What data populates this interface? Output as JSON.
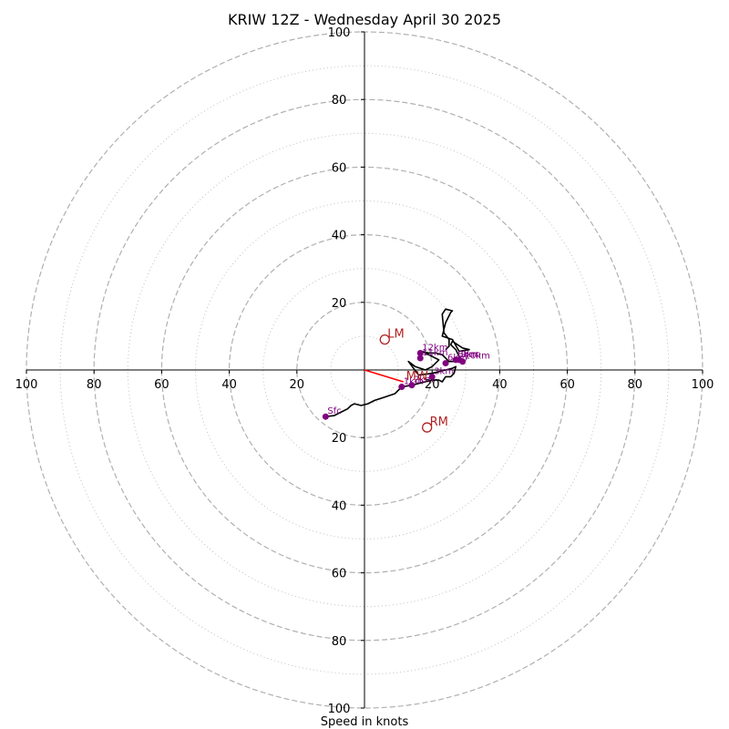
{
  "chart_data": {
    "type": "scatter",
    "subtype": "hodograph",
    "title": "KRIW 12Z - Wednesday April 30 2025",
    "xlabel": "Speed in knots",
    "units": "knots",
    "range": [
      -100,
      100
    ],
    "rings_dashed": [
      20,
      40,
      60,
      80,
      100
    ],
    "rings_dotted": [
      10,
      30,
      50,
      70,
      90
    ],
    "tick_labels": [
      "20",
      "40",
      "60",
      "80",
      "100"
    ],
    "grid": true,
    "colors": {
      "trace": "#000000",
      "height_points": "#800080",
      "storm_motion": "#b22222",
      "mean_wind_vector": "#ff0000",
      "rings": "#b0b0b0"
    },
    "hodograph_trace": {
      "u": [
        -11.5,
        -9,
        -7,
        -5,
        -4,
        -3,
        -1,
        1,
        3,
        6,
        9,
        11,
        14,
        16,
        18,
        20,
        22,
        23,
        24,
        25.5,
        26.5,
        27,
        26,
        24,
        20,
        16,
        13,
        15,
        18,
        20,
        22,
        20,
        17,
        19,
        21,
        23,
        25,
        27,
        28,
        27,
        25.5,
        26,
        29,
        31,
        28,
        26,
        23,
        24,
        25.5,
        26,
        24,
        23,
        23.5,
        25,
        25,
        24
      ],
      "v": [
        -13.8,
        -13.5,
        -12.5,
        -11.5,
        -10.5,
        -10,
        -10.5,
        -10,
        -9,
        -8,
        -7,
        -5,
        -4.5,
        -4,
        -3.5,
        -3,
        -3,
        -3.5,
        -2,
        -2,
        -1,
        1,
        0.5,
        0,
        -1,
        -1.5,
        2.5,
        1,
        0,
        1,
        3,
        4,
        5.5,
        5,
        5,
        4.5,
        2.5,
        2.5,
        4,
        6,
        7.5,
        8.5,
        6.5,
        6,
        5.5,
        9,
        10,
        14,
        17,
        17.5,
        18,
        16.5,
        11,
        9,
        7,
        6
      ]
    },
    "height_points": [
      {
        "label": "Sfc",
        "u": -11.5,
        "v": -13.8
      },
      {
        "label": "1km",
        "u": 11,
        "v": -5
      },
      {
        "label": "2km",
        "u": 14,
        "v": -4.5
      },
      {
        "label": "3km",
        "u": 20,
        "v": -2
      },
      {
        "label": "6km",
        "u": 24,
        "v": 2
      },
      {
        "label": "8km",
        "u": 27,
        "v": 3
      },
      {
        "label": "9km",
        "u": 28,
        "v": 3
      },
      {
        "label": "10km",
        "u": 29,
        "v": 2.5
      },
      {
        "label": "11km",
        "u": 16.5,
        "v": 3.5
      },
      {
        "label": "12km",
        "u": 16.5,
        "v": 5
      }
    ],
    "storm_motion": [
      {
        "label": "LM",
        "u": 6,
        "v": 9
      },
      {
        "label": "RM",
        "u": 18.5,
        "v": -17
      },
      {
        "label": "MW",
        "u": 11.5,
        "v": -3.5
      }
    ],
    "mean_wind_vector": {
      "u": 11.5,
      "v": -3.5
    }
  }
}
